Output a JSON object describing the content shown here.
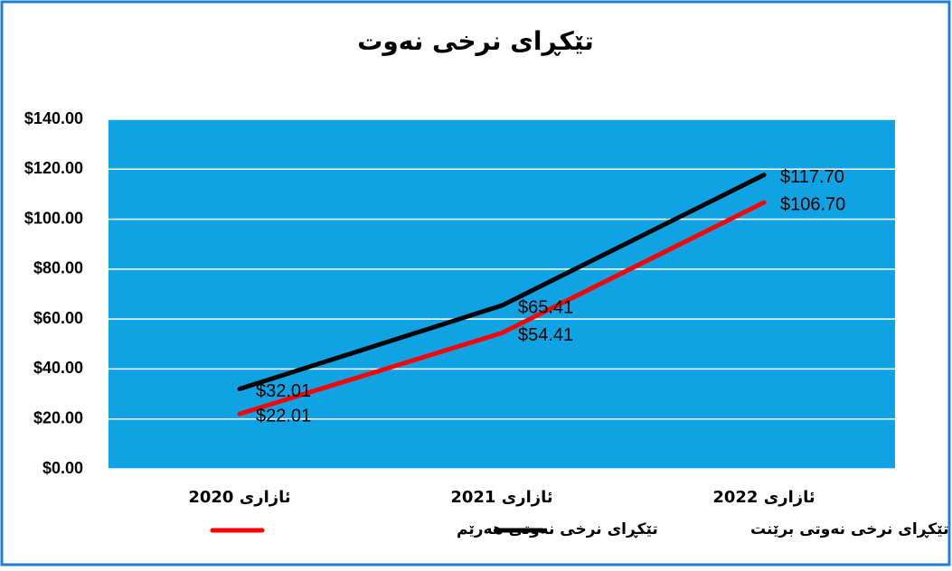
{
  "chart_data": {
    "type": "line",
    "title": "تێکڕای نرخی نەوت",
    "categories": [
      "ئازاری 2020",
      "ئازاری 2021",
      "ئازاری 2022"
    ],
    "series": [
      {
        "name": "تێکڕای نرخی نەوتی هەرێم",
        "color": "#ff0000",
        "values": [
          22.01,
          54.41,
          106.7
        ],
        "value_labels": [
          "$22.01",
          "$54.41",
          "$106.70"
        ]
      },
      {
        "name": "تێکڕای نرخی نەوتی برێنت",
        "color": "#000000",
        "values": [
          32.01,
          65.41,
          117.7
        ],
        "value_labels": [
          "$32.01",
          "$65.41",
          "$117.70"
        ]
      }
    ],
    "ylim": [
      0,
      140
    ],
    "yticks": [
      {
        "value": 0,
        "label": "$0.00"
      },
      {
        "value": 20,
        "label": "$20.00"
      },
      {
        "value": 40,
        "label": "$40.00"
      },
      {
        "value": 60,
        "label": "$60.00"
      },
      {
        "value": 80,
        "label": "$80.00"
      },
      {
        "value": 100,
        "label": "$100.00"
      },
      {
        "value": 120,
        "label": "$120.00"
      },
      {
        "value": 140,
        "label": "$140.00"
      }
    ],
    "grid": true,
    "legend": "bottom",
    "plot_background": "#0fa3e3"
  }
}
